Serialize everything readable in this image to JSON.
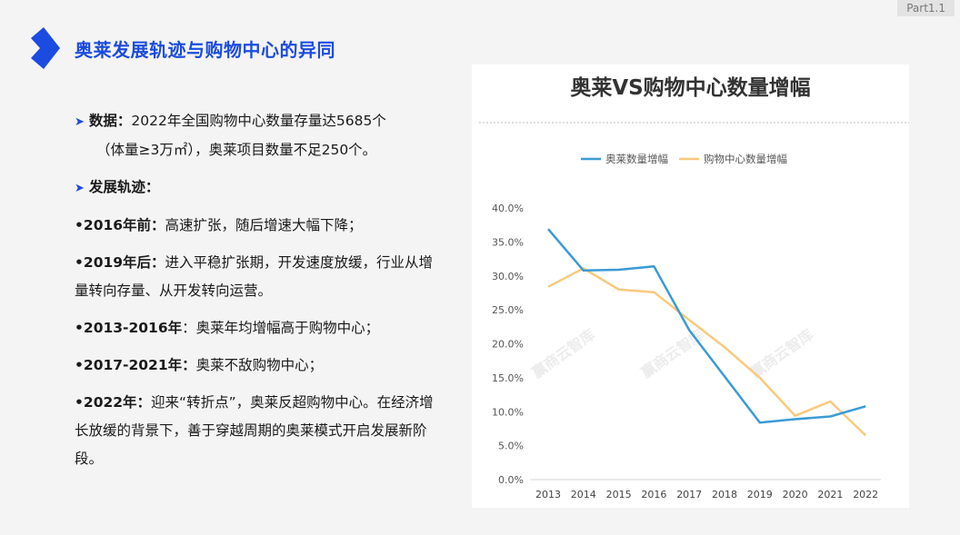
{
  "part_tag": "Part1.1",
  "page_title": "奥莱发展轨迹与购物中心的异同",
  "bullets": {
    "data_label": "数据：",
    "data_text_1": "2022年全国购物中心数量存量达5685个",
    "data_text_2": "（体量≥3万㎡），奥莱项目数量不足250个。",
    "track_label": "发展轨迹：",
    "items": [
      {
        "label": "•2016年前：",
        "text": "高速扩张，随后增速大幅下降；"
      },
      {
        "label": "•2019年后：",
        "text": "进入平稳扩张期，开发速度放缓，行业从增量转向存量、从开发转向运营。"
      },
      {
        "label": "•2013-2016年",
        "text": "：奥莱年均增幅高于购物中心；"
      },
      {
        "label": "•2017-2021年：",
        "text": "奥莱不敌购物中心；"
      },
      {
        "label": "•2022年：",
        "text": "迎来“转折点”，奥莱反超购物中心。在经济增长放缓的背景下，善于穿越周期的奥莱模式开启发展新阶段。"
      }
    ]
  },
  "watermark": "赢商云智库",
  "chart_data": {
    "type": "line",
    "title": "奥莱VS购物中心数量增幅",
    "categories": [
      "2013",
      "2014",
      "2015",
      "2016",
      "2017",
      "2018",
      "2019",
      "2020",
      "2021",
      "2022"
    ],
    "series": [
      {
        "name": "奥莱数量增幅",
        "color": "#3a9bd5",
        "values": [
          36.9,
          30.8,
          30.9,
          31.4,
          22.0,
          15.2,
          8.4,
          8.9,
          9.3,
          10.8
        ]
      },
      {
        "name": "购物中心数量增幅",
        "color": "#f9c97c",
        "values": [
          28.4,
          31.1,
          28.0,
          27.6,
          23.5,
          19.5,
          15.0,
          9.4,
          11.5,
          6.5
        ]
      }
    ],
    "yticks": [
      "0.0%",
      "5.0%",
      "10.0%",
      "15.0%",
      "20.0%",
      "25.0%",
      "30.0%",
      "35.0%",
      "40.0%"
    ],
    "ylim": [
      0,
      40
    ],
    "legend_position": "top",
    "grid": false
  }
}
